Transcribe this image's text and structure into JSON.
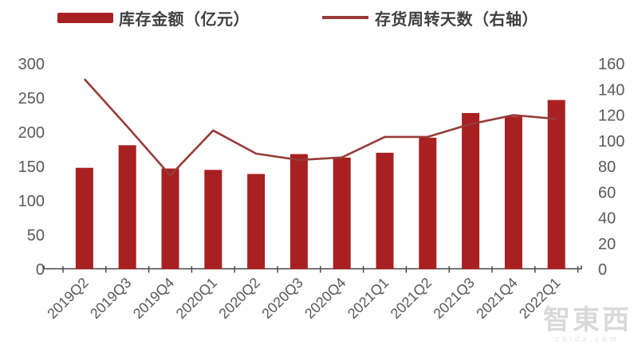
{
  "legend": [
    {
      "label": "库存金额（亿元）",
      "type": "bar",
      "color": "#a82022"
    },
    {
      "label": "存货周转天数（右轴）",
      "type": "line",
      "color": "#963c38"
    }
  ],
  "watermark": {
    "logo": "智東西",
    "domain": "zhidx.com"
  },
  "colors": {
    "bar": "#a82022",
    "line": "#963c38",
    "axis_text": "#595959",
    "axis_line": "#444444"
  },
  "chart_data": {
    "type": "bar",
    "subtype": "bar+line combo, dual axis",
    "title": "",
    "categories": [
      "2019Q2",
      "2019Q3",
      "2019Q4",
      "2020Q1",
      "2020Q2",
      "2020Q3",
      "2020Q4",
      "2021Q1",
      "2021Q2",
      "2021Q3",
      "2021Q4",
      "2022Q1"
    ],
    "series": [
      {
        "name": "库存金额（亿元）",
        "type": "bar",
        "axis": "left",
        "color": "#a82022",
        "values": [
          148,
          181,
          147,
          145,
          139,
          168,
          163,
          170,
          192,
          228,
          223,
          247
        ]
      },
      {
        "name": "存货周转天数（右轴）",
        "type": "line",
        "axis": "right",
        "color": "#963c38",
        "values": [
          148,
          111,
          73,
          108,
          90,
          85,
          87,
          103,
          103,
          113,
          120,
          117
        ]
      }
    ],
    "left_axis": {
      "min": 0,
      "max": 300,
      "step": 50,
      "ticks": [
        0,
        50,
        100,
        150,
        200,
        250,
        300
      ]
    },
    "right_axis": {
      "min": 0,
      "max": 160,
      "step": 20,
      "ticks": [
        0,
        20,
        40,
        60,
        80,
        100,
        120,
        140,
        160
      ]
    },
    "grid": false,
    "legend_position": "top",
    "x_label_rotation": 45
  }
}
